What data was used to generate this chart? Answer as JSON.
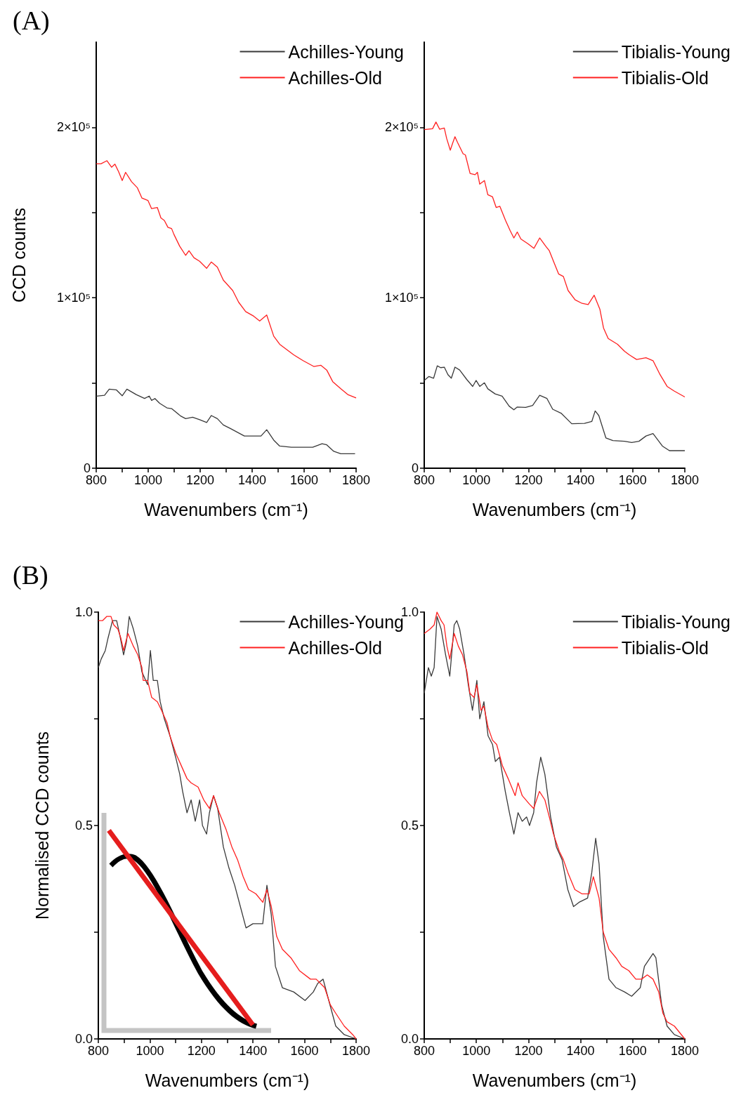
{
  "chart_data": [
    {
      "type": "line",
      "annotations": [
        "(A)"
      ],
      "xlabel": "Wavenumbers (cm⁻¹)",
      "ylabel": "CCD counts",
      "legend": "top right",
      "xlim": [
        800,
        1800
      ],
      "ylim": [
        0,
        250000
      ],
      "xticks": [
        800,
        {
          "value": 900,
          "label": null
        },
        1000,
        {
          "value": 1100,
          "label": null
        },
        1200,
        {
          "value": 1300,
          "label": null
        },
        1400,
        {
          "value": 1500,
          "label": null
        },
        1600,
        {
          "value": 1700,
          "label": null
        },
        1800
      ],
      "yticks": [
        0,
        {
          "value": 50000,
          "label": null
        },
        {
          "value": 100000,
          "label": "1×10⁵"
        },
        {
          "value": 150000,
          "label": null
        },
        {
          "value": 200000,
          "label": "2×10⁵"
        }
      ],
      "series": [
        {
          "name": "Achilles-Young",
          "color": "#3a3a3a",
          "x": [
            800,
            832,
            850,
            877,
            900,
            918,
            954,
            986,
            1004,
            1013,
            1026,
            1044,
            1072,
            1090,
            1126,
            1144,
            1171,
            1198,
            1225,
            1243,
            1266,
            1289,
            1316,
            1370,
            1434,
            1456,
            1483,
            1506,
            1551,
            1569,
            1633,
            1669,
            1687,
            1714,
            1741,
            1796
          ],
          "values": [
            42300,
            42800,
            46400,
            46000,
            42500,
            46400,
            43200,
            40900,
            42300,
            39800,
            40900,
            38100,
            35400,
            35000,
            30500,
            29100,
            29900,
            28500,
            26800,
            30900,
            29100,
            25400,
            23300,
            18900,
            18900,
            22600,
            16500,
            13000,
            12300,
            12300,
            12300,
            14400,
            13700,
            9900,
            8500,
            8500
          ]
        },
        {
          "name": "Achilles-Old",
          "color": "#ff2020",
          "x": [
            800,
            818,
            841,
            859,
            872,
            886,
            900,
            913,
            936,
            958,
            976,
            999,
            1013,
            1035,
            1049,
            1062,
            1076,
            1090,
            1099,
            1121,
            1144,
            1157,
            1176,
            1198,
            1225,
            1243,
            1266,
            1289,
            1325,
            1348,
            1375,
            1406,
            1429,
            1456,
            1483,
            1506,
            1560,
            1596,
            1637,
            1664,
            1687,
            1710,
            1741,
            1768,
            1800
          ],
          "values": [
            178600,
            178600,
            180400,
            176600,
            178400,
            174000,
            168800,
            173600,
            168100,
            164600,
            158500,
            157100,
            152300,
            153000,
            146800,
            145400,
            141300,
            140600,
            137200,
            130300,
            124900,
            127600,
            123500,
            121400,
            117300,
            121000,
            118000,
            110400,
            104300,
            97400,
            91900,
            89200,
            86400,
            89900,
            77500,
            72700,
            66500,
            63100,
            59700,
            60400,
            57600,
            50800,
            46600,
            43200,
            41200
          ]
        }
      ]
    },
    {
      "type": "line",
      "xlabel": "Wavenumbers (cm⁻¹)",
      "legend": "top right",
      "xlim": [
        800,
        1800
      ],
      "ylim": [
        0,
        250000
      ],
      "xticks": [
        800,
        {
          "value": 900,
          "label": null
        },
        1000,
        {
          "value": 1100,
          "label": null
        },
        1200,
        {
          "value": 1300,
          "label": null
        },
        1400,
        {
          "value": 1500,
          "label": null
        },
        1600,
        {
          "value": 1700,
          "label": null
        },
        1800
      ],
      "yticks": [
        0,
        {
          "value": 50000,
          "label": null
        },
        {
          "value": 100000,
          "label": "1×10⁵"
        },
        {
          "value": 150000,
          "label": null
        },
        {
          "value": 200000,
          "label": "2×10⁵"
        }
      ],
      "series": [
        {
          "name": "Tibialis-Young",
          "color": "#3a3a3a",
          "x": [
            800,
            818,
            836,
            850,
            863,
            877,
            891,
            904,
            918,
            936,
            963,
            986,
            999,
            1013,
            1031,
            1044,
            1072,
            1099,
            1126,
            1144,
            1157,
            1189,
            1216,
            1243,
            1271,
            1293,
            1325,
            1366,
            1415,
            1443,
            1456,
            1470,
            1497,
            1524,
            1569,
            1596,
            1624,
            1651,
            1678,
            1714,
            1741,
            1800
          ],
          "values": [
            51500,
            53800,
            52800,
            60100,
            59000,
            59300,
            54900,
            52800,
            59300,
            57600,
            52100,
            48000,
            51500,
            48000,
            50100,
            46600,
            43600,
            42300,
            36400,
            34300,
            35900,
            35700,
            36800,
            42800,
            40900,
            34600,
            32300,
            26100,
            26300,
            27400,
            33600,
            30900,
            17800,
            16200,
            15800,
            15100,
            15800,
            18900,
            20300,
            13000,
            10300,
            10300
          ]
        },
        {
          "name": "Tibialis-Old",
          "color": "#ff2020",
          "x": [
            800,
            832,
            845,
            859,
            877,
            886,
            900,
            909,
            918,
            927,
            949,
            958,
            976,
            995,
            1004,
            1013,
            1031,
            1044,
            1062,
            1076,
            1090,
            1112,
            1130,
            1144,
            1157,
            1171,
            1198,
            1221,
            1243,
            1266,
            1280,
            1298,
            1316,
            1334,
            1352,
            1379,
            1406,
            1429,
            1452,
            1474,
            1488,
            1506,
            1542,
            1569,
            1587,
            1615,
            1651,
            1678,
            1705,
            1732,
            1759,
            1800
          ],
          "values": [
            198700,
            199200,
            203100,
            198900,
            199600,
            193500,
            186600,
            190700,
            194500,
            191400,
            184500,
            183800,
            172900,
            172200,
            173600,
            166700,
            168800,
            160500,
            159200,
            153000,
            153700,
            145400,
            139300,
            135100,
            138600,
            134500,
            131700,
            129000,
            135100,
            130300,
            127600,
            120700,
            113900,
            112500,
            104300,
            98800,
            96700,
            96000,
            101500,
            93300,
            82300,
            76100,
            72700,
            68600,
            66500,
            63800,
            64800,
            63100,
            54900,
            48000,
            45300,
            41800
          ]
        }
      ]
    },
    {
      "type": "line",
      "annotations": [
        "(B)"
      ],
      "xlabel": "Wavenumbers (cm⁻¹)",
      "ylabel": "Normalised CCD counts",
      "legend": "top right",
      "xlim": [
        800,
        1800
      ],
      "ylim": [
        0,
        1
      ],
      "xticks": [
        800,
        {
          "value": 900,
          "label": null
        },
        1000,
        {
          "value": 1100,
          "label": null
        },
        1200,
        {
          "value": 1300,
          "label": null
        },
        1400,
        {
          "value": 1500,
          "label": null
        },
        1600,
        {
          "value": 1700,
          "label": null
        },
        1800
      ],
      "yticks": [
        {
          "value": 0,
          "label": "0.0"
        },
        {
          "value": 0.25,
          "label": null
        },
        {
          "value": 0.5,
          "label": "0.5"
        },
        {
          "value": 0.75,
          "label": null
        },
        {
          "value": 1,
          "label": "1.0"
        }
      ],
      "series": [
        {
          "name": "Achilles-Young",
          "color": "#3a3a3a",
          "x": [
            800,
            811,
            827,
            838,
            855,
            871,
            882,
            898,
            909,
            920,
            936,
            953,
            969,
            991,
            1002,
            1013,
            1029,
            1040,
            1056,
            1078,
            1100,
            1116,
            1127,
            1144,
            1160,
            1176,
            1193,
            1204,
            1220,
            1231,
            1247,
            1263,
            1285,
            1307,
            1329,
            1351,
            1373,
            1400,
            1438,
            1454,
            1471,
            1487,
            1514,
            1558,
            1602,
            1634,
            1651,
            1672,
            1694,
            1721,
            1754,
            1800
          ],
          "values": [
            0.87,
            0.89,
            0.91,
            0.94,
            0.98,
            0.98,
            0.95,
            0.9,
            0.93,
            0.99,
            0.96,
            0.92,
            0.86,
            0.83,
            0.91,
            0.84,
            0.84,
            0.79,
            0.75,
            0.71,
            0.66,
            0.62,
            0.58,
            0.53,
            0.56,
            0.51,
            0.56,
            0.5,
            0.48,
            0.53,
            0.57,
            0.54,
            0.45,
            0.4,
            0.36,
            0.31,
            0.26,
            0.27,
            0.27,
            0.36,
            0.29,
            0.17,
            0.12,
            0.11,
            0.09,
            0.11,
            0.13,
            0.14,
            0.09,
            0.03,
            0.01,
            0.0
          ]
        },
        {
          "name": "Achilles-Old",
          "color": "#ff2020",
          "x": [
            800,
            816,
            833,
            849,
            860,
            876,
            887,
            898,
            915,
            936,
            953,
            969,
            974,
            991,
            1007,
            1029,
            1045,
            1067,
            1078,
            1100,
            1122,
            1144,
            1160,
            1187,
            1209,
            1231,
            1247,
            1269,
            1296,
            1318,
            1340,
            1362,
            1383,
            1411,
            1438,
            1454,
            1471,
            1492,
            1514,
            1547,
            1580,
            1623,
            1645,
            1678,
            1700,
            1721,
            1754,
            1787,
            1800
          ],
          "values": [
            0.98,
            0.98,
            0.99,
            0.99,
            0.97,
            0.96,
            0.94,
            0.91,
            0.95,
            0.92,
            0.9,
            0.87,
            0.84,
            0.84,
            0.8,
            0.79,
            0.77,
            0.74,
            0.71,
            0.67,
            0.64,
            0.61,
            0.6,
            0.59,
            0.56,
            0.54,
            0.57,
            0.53,
            0.49,
            0.45,
            0.42,
            0.38,
            0.35,
            0.34,
            0.32,
            0.35,
            0.31,
            0.24,
            0.21,
            0.19,
            0.16,
            0.14,
            0.14,
            0.12,
            0.08,
            0.06,
            0.03,
            0.01,
            0.0
          ]
        }
      ]
    },
    {
      "type": "line",
      "xlabel": "Wavenumbers (cm⁻¹)",
      "legend": "top right",
      "xlim": [
        800,
        1800
      ],
      "ylim": [
        0,
        1
      ],
      "xticks": [
        800,
        {
          "value": 900,
          "label": null
        },
        1000,
        {
          "value": 1100,
          "label": null
        },
        1200,
        {
          "value": 1300,
          "label": null
        },
        1400,
        {
          "value": 1500,
          "label": null
        },
        1600,
        {
          "value": 1700,
          "label": null
        },
        1800
      ],
      "yticks": [
        {
          "value": 0,
          "label": "0.0"
        },
        {
          "value": 0.25,
          "label": null
        },
        {
          "value": 0.5,
          "label": "0.5"
        },
        {
          "value": 0.75,
          "label": null
        },
        {
          "value": 1,
          "label": "1.0"
        }
      ],
      "series": [
        {
          "name": "Tibialis-Young",
          "color": "#3a3a3a",
          "x": [
            800,
            816,
            827,
            838,
            849,
            865,
            882,
            898,
            915,
            925,
            936,
            953,
            969,
            985,
            1002,
            1013,
            1029,
            1045,
            1062,
            1073,
            1089,
            1111,
            1127,
            1144,
            1160,
            1176,
            1193,
            1204,
            1220,
            1231,
            1247,
            1263,
            1285,
            1307,
            1329,
            1351,
            1373,
            1394,
            1427,
            1443,
            1458,
            1471,
            1487,
            1509,
            1536,
            1569,
            1596,
            1629,
            1645,
            1678,
            1689,
            1711,
            1732,
            1760,
            1800
          ],
          "values": [
            0.81,
            0.87,
            0.85,
            0.87,
            0.99,
            0.96,
            0.9,
            0.85,
            0.97,
            0.98,
            0.96,
            0.9,
            0.83,
            0.77,
            0.84,
            0.75,
            0.79,
            0.71,
            0.69,
            0.65,
            0.66,
            0.58,
            0.53,
            0.48,
            0.53,
            0.51,
            0.52,
            0.5,
            0.53,
            0.6,
            0.66,
            0.62,
            0.52,
            0.45,
            0.42,
            0.35,
            0.31,
            0.32,
            0.33,
            0.39,
            0.47,
            0.41,
            0.24,
            0.14,
            0.12,
            0.11,
            0.1,
            0.12,
            0.17,
            0.2,
            0.19,
            0.08,
            0.03,
            0.01,
            0.0
          ]
        },
        {
          "name": "Tibialis-Old",
          "color": "#ff2020",
          "x": [
            800,
            822,
            838,
            849,
            865,
            876,
            887,
            898,
            915,
            931,
            947,
            964,
            975,
            991,
            1002,
            1018,
            1029,
            1045,
            1062,
            1078,
            1100,
            1122,
            1149,
            1160,
            1176,
            1204,
            1220,
            1242,
            1263,
            1280,
            1296,
            1318,
            1334,
            1351,
            1378,
            1405,
            1433,
            1449,
            1471,
            1487,
            1509,
            1536,
            1558,
            1585,
            1612,
            1634,
            1656,
            1678,
            1700,
            1716,
            1732,
            1760,
            1800
          ],
          "values": [
            0.95,
            0.96,
            0.97,
            1.0,
            0.98,
            0.97,
            0.92,
            0.89,
            0.95,
            0.92,
            0.9,
            0.86,
            0.81,
            0.8,
            0.83,
            0.77,
            0.78,
            0.73,
            0.7,
            0.69,
            0.64,
            0.61,
            0.57,
            0.6,
            0.57,
            0.55,
            0.54,
            0.58,
            0.56,
            0.52,
            0.48,
            0.44,
            0.42,
            0.39,
            0.35,
            0.34,
            0.34,
            0.38,
            0.33,
            0.25,
            0.21,
            0.19,
            0.17,
            0.16,
            0.14,
            0.14,
            0.15,
            0.14,
            0.11,
            0.06,
            0.04,
            0.03,
            0.0
          ]
        }
      ]
    }
  ]
}
